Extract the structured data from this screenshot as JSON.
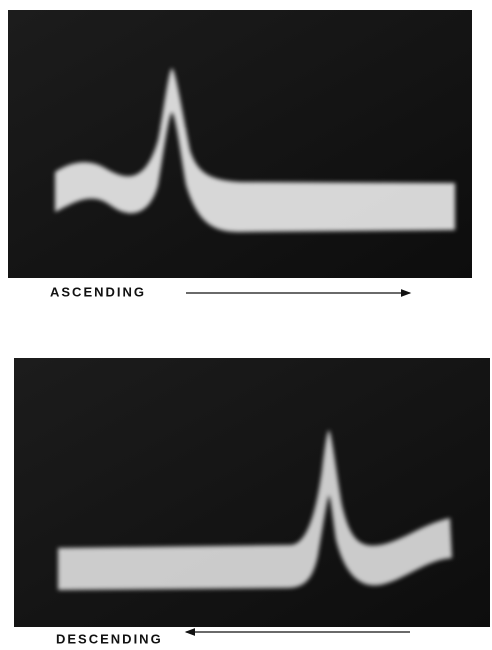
{
  "panels": [
    {
      "label": "ASCENDING"
    },
    {
      "label": "DESCENDING"
    }
  ]
}
